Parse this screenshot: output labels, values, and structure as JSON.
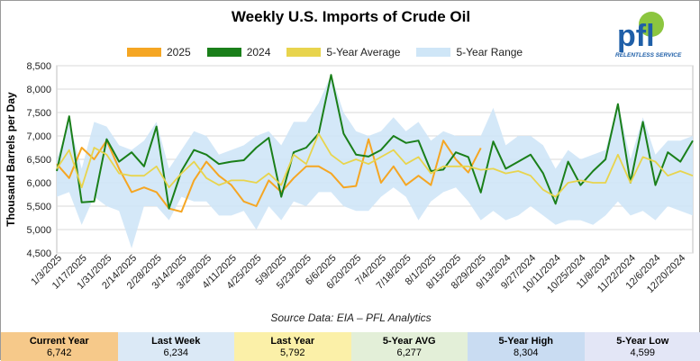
{
  "title": "Weekly U.S. Imports of Crude Oil",
  "logo": {
    "text": "pfl",
    "tagline": "RELENTLESS SERVICE"
  },
  "source": "Source Data: EIA – PFL Analytics",
  "legend": [
    {
      "name": "2025",
      "color": "#f5a623"
    },
    {
      "name": "2024",
      "color": "#1a7f1a"
    },
    {
      "name": "5-Year Average",
      "color": "#e8d44d"
    },
    {
      "name": "5-Year Range",
      "color": "#cfe6f7"
    }
  ],
  "stats": [
    {
      "label": "Current Year",
      "value": "6,742",
      "color": "#f6c98a"
    },
    {
      "label": "Last Week",
      "value": "6,234",
      "color": "#dbe9f6"
    },
    {
      "label": "Last Year",
      "value": "5,792",
      "color": "#fbf0a8"
    },
    {
      "label": "5-Year AVG",
      "value": "6,277",
      "color": "#e3efd8"
    },
    {
      "label": "5-Year High",
      "value": "8,304",
      "color": "#c9dcf2"
    },
    {
      "label": "5-Year Low",
      "value": "4,599",
      "color": "#e3e6f6"
    }
  ],
  "chart_data": {
    "type": "line",
    "title": "Weekly U.S. Imports of Crude Oil",
    "ylabel": "Thousand Barrels per Day",
    "xlabel": "",
    "ylim": [
      4500,
      8500
    ],
    "yticks": [
      "4,500",
      "5,000",
      "5,500",
      "6,000",
      "6,500",
      "7,000",
      "7,500",
      "8,000",
      "8,500"
    ],
    "grid": true,
    "legend_position": "top",
    "x_tick_labels": [
      "1/3/2025",
      "1/17/2025",
      "1/31/2025",
      "2/14/2025",
      "2/28/2025",
      "3/14/2025",
      "3/28/2025",
      "4/11/2025",
      "4/25/2025",
      "5/9/2025",
      "5/23/2025",
      "6/6/2025",
      "6/20/2025",
      "7/4/2025",
      "7/18/2025",
      "8/1/2025",
      "8/15/2025",
      "8/29/2025",
      "9/13/2024",
      "9/27/2024",
      "10/11/2024",
      "10/25/2024",
      "11/8/2024",
      "11/22/2024",
      "12/6/2024",
      "12/20/2024"
    ],
    "series": [
      {
        "name": "2025",
        "color": "#f5a623",
        "values": [
          6400,
          6100,
          6750,
          6500,
          6900,
          6300,
          5800,
          5900,
          5800,
          5450,
          5380,
          6050,
          6450,
          6150,
          5950,
          5600,
          5500,
          6050,
          5800,
          6100,
          6350,
          6350,
          6200,
          5900,
          5930,
          6930,
          6000,
          6350,
          5950,
          6150,
          5950,
          6900,
          6500,
          6220,
          6742
        ]
      },
      {
        "name": "2024",
        "color": "#1a7f1a",
        "values": [
          6250,
          7420,
          5580,
          5600,
          6930,
          6450,
          6650,
          6350,
          7200,
          5450,
          6250,
          6700,
          6600,
          6400,
          6450,
          6480,
          6750,
          6960,
          5700,
          6650,
          6750,
          7050,
          8304,
          7050,
          6600,
          6560,
          6700,
          7000,
          6850,
          6900,
          6250,
          6280,
          6650,
          6550,
          5792,
          6880,
          6300,
          6450,
          6600,
          6200,
          5550,
          6450,
          5950,
          6250,
          6500,
          7680,
          6000,
          7300,
          5950,
          6650,
          6450,
          6900
        ]
      },
      {
        "name": "5-Year Average",
        "color": "#e8d44d",
        "values": [
          6300,
          6700,
          5900,
          6750,
          6600,
          6200,
          6150,
          6150,
          6350,
          5900,
          6200,
          6450,
          6100,
          5950,
          6050,
          6050,
          6000,
          6200,
          5950,
          6600,
          6400,
          7050,
          6600,
          6400,
          6500,
          6400,
          6550,
          6700,
          6400,
          6550,
          6200,
          6350,
          6350,
          6350,
          6277,
          6300,
          6200,
          6250,
          6150,
          5850,
          5700,
          6000,
          6050,
          6000,
          6000,
          6600,
          6000,
          6550,
          6450,
          6150,
          6250,
          6150
        ]
      },
      {
        "name": "5-Year Range",
        "color": "#cfe6f7",
        "high": [
          6500,
          7300,
          6300,
          7300,
          7200,
          6800,
          6700,
          6900,
          7300,
          6300,
          6700,
          7100,
          7000,
          6600,
          6700,
          6800,
          7000,
          7100,
          6800,
          7300,
          7300,
          7700,
          8304,
          7500,
          7100,
          7000,
          7100,
          7400,
          7100,
          7300,
          6900,
          7100,
          7000,
          7000,
          7000,
          7600,
          6800,
          7000,
          7000,
          6800,
          6300,
          6700,
          6500,
          6600,
          6700,
          7700,
          6500,
          7400,
          6600,
          6900,
          6900,
          7000
        ],
        "low": [
          5700,
          5800,
          5100,
          5700,
          5500,
          5400,
          4599,
          5500,
          5500,
          5200,
          5700,
          5600,
          5600,
          5300,
          5300,
          5400,
          5000,
          5500,
          5200,
          5600,
          5500,
          5800,
          5800,
          5500,
          5400,
          5400,
          5700,
          5900,
          5700,
          5200,
          5600,
          5800,
          5900,
          5600,
          5200,
          5400,
          5200,
          5300,
          5500,
          5300,
          5100,
          5200,
          5200,
          5100,
          5300,
          5600,
          5300,
          5400,
          5200,
          5500,
          5400,
          5300
        ]
      }
    ]
  }
}
